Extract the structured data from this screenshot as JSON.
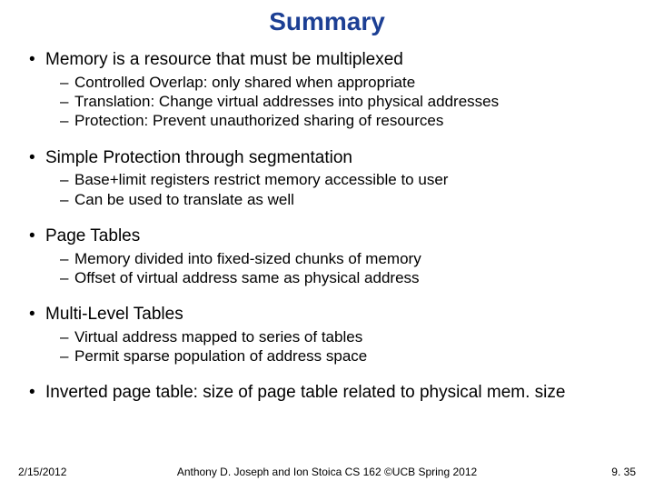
{
  "title": "Summary",
  "title_color": "#1c3f94",
  "background_color": "#ffffff",
  "text_color": "#000000",
  "fonts": {
    "title_size": 28,
    "l1_size": 19,
    "l2_size": 17,
    "footer_size": 12
  },
  "bullets": [
    {
      "text": "Memory is a resource that must be multiplexed",
      "sub": [
        "Controlled Overlap: only shared when appropriate",
        "Translation: Change virtual addresses into physical addresses",
        "Protection: Prevent unauthorized sharing of resources"
      ]
    },
    {
      "text": "Simple Protection through segmentation",
      "sub": [
        "Base+limit registers restrict memory accessible to user",
        "Can be used to translate as well"
      ]
    },
    {
      "text": "Page Tables",
      "sub": [
        "Memory divided into fixed-sized chunks of memory",
        "Offset of virtual address same as physical address"
      ]
    },
    {
      "text": "Multi-Level Tables",
      "sub": [
        "Virtual address mapped to series of tables",
        "Permit sparse population of address space"
      ]
    },
    {
      "text": "Inverted page table: size of page table related to physical mem. size",
      "sub": []
    }
  ],
  "footer": {
    "date": "2/15/2012",
    "center": "Anthony D. Joseph and Ion Stoica CS 162 ©UCB Spring 2012",
    "page": "9. 35"
  }
}
